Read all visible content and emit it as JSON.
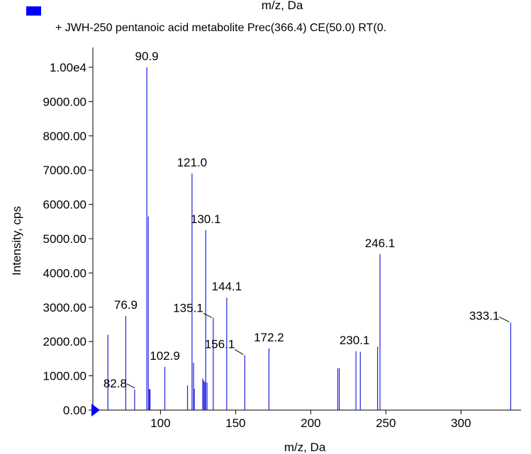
{
  "chart_data": {
    "type": "bar",
    "title_fragment": "m/z, Da",
    "legend": {
      "label": "+ JWH-250 pentanoic acid metabolite Prec(366.4) CE(50.0) RT(0.",
      "color": "#0000ff"
    },
    "xlabel": "m/z, Da",
    "ylabel": "Intensity, cps",
    "xlim": [
      55,
      340
    ],
    "ylim": [
      0,
      10000
    ],
    "x_ticks": [
      100,
      150,
      200,
      250,
      300
    ],
    "x_tick_labels": [
      "100",
      "150",
      "200",
      "250",
      "300"
    ],
    "y_ticks": [
      0,
      1000,
      2000,
      3000,
      4000,
      5000,
      6000,
      7000,
      8000,
      9000,
      10000
    ],
    "y_tick_labels": [
      "0.00",
      "1000.00",
      "2000.00",
      "3000.00",
      "4000.00",
      "5000.00",
      "6000.00",
      "7000.00",
      "8000.00",
      "9000.00",
      "1.00e4"
    ],
    "bar_color": "#2020e0",
    "peaks": [
      {
        "x": 65.0,
        "y": 2200
      },
      {
        "x": 76.9,
        "y": 2750
      },
      {
        "x": 82.8,
        "y": 600
      },
      {
        "x": 90.9,
        "y": 10000
      },
      {
        "x": 91.9,
        "y": 5650
      },
      {
        "x": 92.5,
        "y": 620
      },
      {
        "x": 93.1,
        "y": 600
      },
      {
        "x": 102.9,
        "y": 1260
      },
      {
        "x": 118.0,
        "y": 720
      },
      {
        "x": 121.0,
        "y": 6900
      },
      {
        "x": 122.0,
        "y": 1380
      },
      {
        "x": 122.5,
        "y": 620
      },
      {
        "x": 128.1,
        "y": 920
      },
      {
        "x": 128.8,
        "y": 860
      },
      {
        "x": 129.5,
        "y": 820
      },
      {
        "x": 130.1,
        "y": 5250
      },
      {
        "x": 131.0,
        "y": 800
      },
      {
        "x": 135.1,
        "y": 2700
      },
      {
        "x": 144.1,
        "y": 3280
      },
      {
        "x": 156.1,
        "y": 1600
      },
      {
        "x": 172.2,
        "y": 1800
      },
      {
        "x": 218.0,
        "y": 1220
      },
      {
        "x": 219.0,
        "y": 1220
      },
      {
        "x": 230.1,
        "y": 1720
      },
      {
        "x": 233.0,
        "y": 1700
      },
      {
        "x": 244.5,
        "y": 1850
      },
      {
        "x": 246.1,
        "y": 4550
      },
      {
        "x": 333.1,
        "y": 2550
      }
    ],
    "peak_labels": [
      {
        "text": "90.9",
        "x": 90.9,
        "y": 10000
      },
      {
        "text": "121.0",
        "x": 121.0,
        "y": 6900
      },
      {
        "text": "130.1",
        "x": 130.1,
        "y": 5250
      },
      {
        "text": "246.1",
        "x": 246.1,
        "y": 4550
      },
      {
        "text": "144.1",
        "x": 144.1,
        "y": 3280
      },
      {
        "text": "76.9",
        "x": 76.9,
        "y": 2750
      },
      {
        "text": "135.1",
        "x": 135.1,
        "y": 2700
      },
      {
        "text": "333.1",
        "x": 333.1,
        "y": 2550
      },
      {
        "text": "172.2",
        "x": 172.2,
        "y": 1800
      },
      {
        "text": "230.1",
        "x": 230.1,
        "y": 1720
      },
      {
        "text": "156.1",
        "x": 156.1,
        "y": 1600
      },
      {
        "text": "102.9",
        "x": 102.9,
        "y": 1260
      },
      {
        "text": "82.8",
        "x": 82.8,
        "y": 600
      }
    ]
  }
}
